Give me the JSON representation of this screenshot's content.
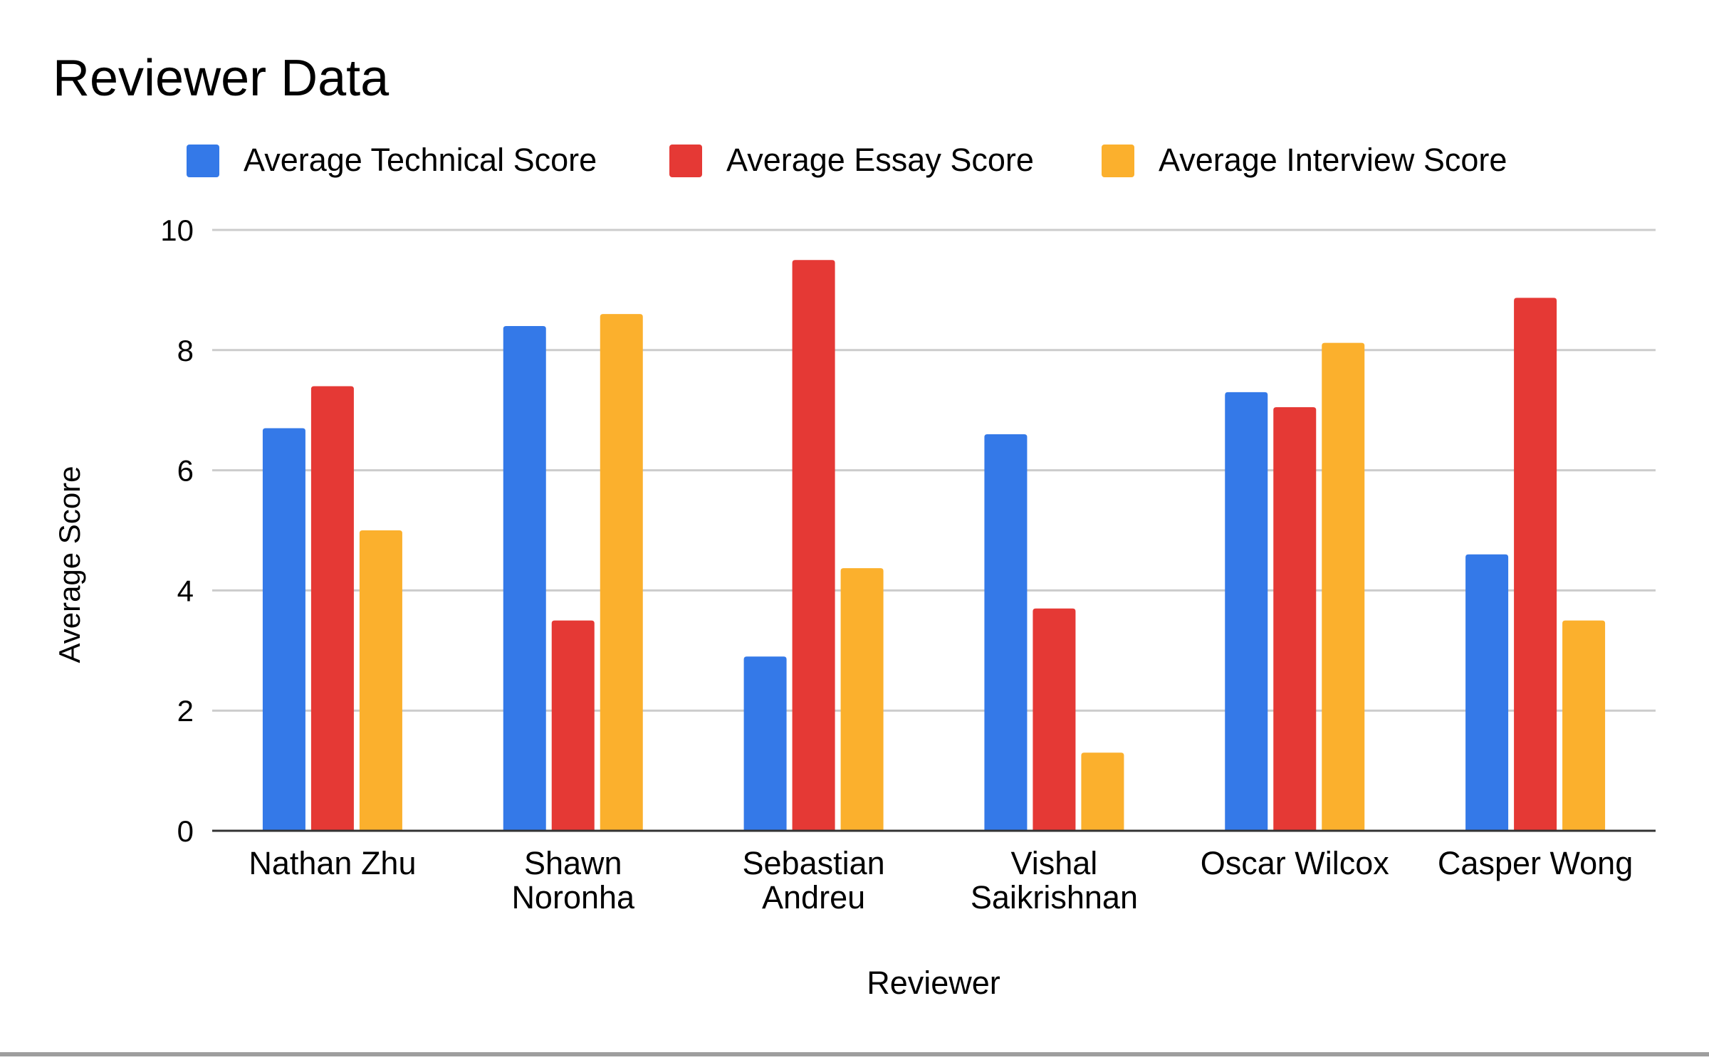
{
  "chart_data": {
    "type": "bar",
    "title": "Reviewer Data",
    "xlabel": "Reviewer",
    "ylabel": "Average Score",
    "ylim": [
      0,
      10
    ],
    "yticks": [
      "0",
      "2",
      "4",
      "6",
      "8",
      "10"
    ],
    "grid": true,
    "legend_position": "top",
    "categories": [
      [
        "Nathan Zhu"
      ],
      [
        "Shawn",
        "Noronha"
      ],
      [
        "Sebastian",
        "Andreu"
      ],
      [
        "Vishal",
        "Saikrishnan"
      ],
      [
        "Oscar Wilcox"
      ],
      [
        "Casper Wong"
      ]
    ],
    "series": [
      {
        "name": "Average Technical Score",
        "color": "#3479e8",
        "values": [
          6.7,
          8.4,
          2.9,
          6.6,
          7.3,
          4.6
        ]
      },
      {
        "name": "Average Essay Score",
        "color": "#e53935",
        "values": [
          7.4,
          3.5,
          9.5,
          3.7,
          7.05,
          8.87
        ]
      },
      {
        "name": "Average Interview Score",
        "color": "#fbb02d",
        "values": [
          5.0,
          8.6,
          4.37,
          1.3,
          8.12,
          3.5
        ]
      }
    ]
  }
}
